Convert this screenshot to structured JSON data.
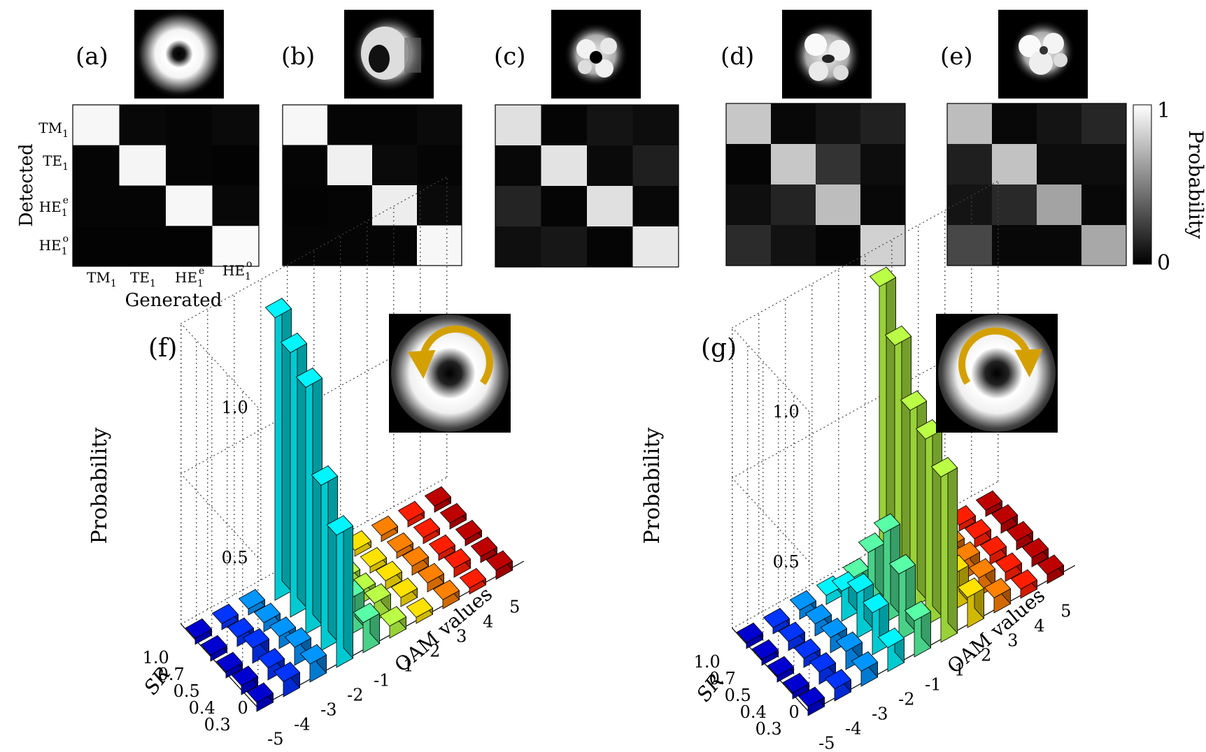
{
  "chart_data": [
    {
      "type": "heatmap",
      "panel_label": "(a)",
      "xlabel": "Generated",
      "ylabel": "Detected",
      "row_labels": [
        "TM",
        "TE",
        "HE",
        "HE"
      ],
      "row_subs": [
        "1",
        "1",
        "1",
        "1"
      ],
      "row_sups": [
        "",
        "",
        "e",
        "o"
      ],
      "col_labels": [
        "TM",
        "TE",
        "HE",
        "HE"
      ],
      "col_subs": [
        "1",
        "1",
        "1",
        "1"
      ],
      "col_sups": [
        "",
        "",
        "e",
        "o"
      ],
      "values": [
        [
          0.97,
          0.03,
          0.02,
          0.04
        ],
        [
          0.02,
          0.96,
          0.02,
          0.01
        ],
        [
          0.02,
          0.02,
          0.97,
          0.03
        ],
        [
          0.01,
          0.01,
          0.01,
          0.98
        ]
      ]
    },
    {
      "type": "heatmap",
      "panel_label": "(b)",
      "values": [
        [
          0.97,
          0.02,
          0.02,
          0.04
        ],
        [
          0.02,
          0.94,
          0.04,
          0.02
        ],
        [
          0.01,
          0.02,
          0.93,
          0.04
        ],
        [
          0.02,
          0.02,
          0.02,
          0.97
        ]
      ]
    },
    {
      "type": "heatmap",
      "panel_label": "(c)",
      "values": [
        [
          0.88,
          0.02,
          0.08,
          0.05
        ],
        [
          0.03,
          0.89,
          0.04,
          0.12
        ],
        [
          0.14,
          0.02,
          0.88,
          0.03
        ],
        [
          0.06,
          0.09,
          0.02,
          0.91
        ]
      ]
    },
    {
      "type": "heatmap",
      "panel_label": "(d)",
      "values": [
        [
          0.78,
          0.03,
          0.08,
          0.13
        ],
        [
          0.02,
          0.78,
          0.2,
          0.05
        ],
        [
          0.06,
          0.14,
          0.74,
          0.03
        ],
        [
          0.17,
          0.07,
          0.02,
          0.82
        ]
      ]
    },
    {
      "type": "heatmap",
      "panel_label": "(e)",
      "values": [
        [
          0.74,
          0.03,
          0.08,
          0.15
        ],
        [
          0.12,
          0.76,
          0.05,
          0.05
        ],
        [
          0.08,
          0.16,
          0.64,
          0.03
        ],
        [
          0.28,
          0.03,
          0.03,
          0.66
        ]
      ]
    },
    {
      "type": "colorbar",
      "label": "Probability",
      "min_label": "0",
      "max_label": "1",
      "range": [
        0,
        1
      ]
    },
    {
      "type": "bar3d",
      "panel_label": "(f)",
      "title": "",
      "zlabel": "Probability",
      "xlabel": "OAM values",
      "ylabel": "SR",
      "oam_values": [
        -5,
        -4,
        -3,
        -2,
        -1,
        1,
        2,
        3,
        4,
        5
      ],
      "oam_tick_labels": [
        "-5",
        "-4",
        "-3",
        "-2",
        "-1",
        "1",
        "2",
        "3",
        "4",
        "5"
      ],
      "sr_values": [
        0.3,
        0.4,
        0.5,
        0.7,
        1.0
      ],
      "sr_tick_labels": [
        "0.3",
        "0.4",
        "0.5",
        "0.7",
        "1.0"
      ],
      "z_ticks": [
        0,
        0.5,
        1.0
      ],
      "z_tick_labels": [
        "0",
        "0.5",
        "1.0"
      ],
      "zlim": [
        0,
        1.0
      ],
      "values": [
        [
          0.03,
          0.05,
          0.06,
          0.44,
          0.1,
          0.04,
          0.02,
          0.03,
          0.02,
          0.03
        ],
        [
          0.03,
          0.04,
          0.06,
          0.55,
          0.12,
          0.06,
          0.03,
          0.03,
          0.03,
          0.02
        ],
        [
          0.02,
          0.05,
          0.04,
          0.82,
          0.05,
          0.04,
          0.03,
          0.03,
          0.02,
          0.02
        ],
        [
          0.02,
          0.03,
          0.03,
          0.88,
          0.04,
          0.03,
          0.02,
          0.02,
          0.02,
          0.02
        ],
        [
          0.02,
          0.02,
          0.02,
          0.94,
          0.02,
          0.02,
          0.02,
          0.02,
          0.02,
          0.02
        ]
      ]
    },
    {
      "type": "bar3d",
      "panel_label": "(g)",
      "title": "",
      "zlabel": "Probability",
      "xlabel": "OAM values",
      "ylabel": "SR",
      "oam_values": [
        -5,
        -4,
        -3,
        -2,
        -1,
        1,
        2,
        3,
        4,
        5
      ],
      "oam_tick_labels": [
        "-5",
        "-4",
        "-3",
        "-2",
        "-1",
        "1",
        "2",
        "3",
        "4",
        "5"
      ],
      "sr_values": [
        0.3,
        0.4,
        0.5,
        0.7,
        1.0
      ],
      "sr_tick_labels": [
        "0.3",
        "0.4",
        "0.5",
        "0.7",
        "1.0"
      ],
      "z_ticks": [
        0,
        0.5,
        1.0
      ],
      "z_tick_labels": [
        "0",
        "0.5",
        "1.0"
      ],
      "zlim": [
        0,
        1.0
      ],
      "values": [
        [
          0.03,
          0.04,
          0.05,
          0.08,
          0.12,
          0.55,
          0.1,
          0.05,
          0.03,
          0.03
        ],
        [
          0.02,
          0.04,
          0.06,
          0.14,
          0.22,
          0.62,
          0.12,
          0.06,
          0.03,
          0.03
        ],
        [
          0.02,
          0.03,
          0.05,
          0.15,
          0.3,
          0.66,
          0.12,
          0.06,
          0.03,
          0.03
        ],
        [
          0.02,
          0.03,
          0.04,
          0.1,
          0.18,
          0.82,
          0.07,
          0.05,
          0.03,
          0.03
        ],
        [
          0.02,
          0.02,
          0.03,
          0.03,
          0.04,
          0.96,
          0.04,
          0.03,
          0.02,
          0.02
        ]
      ]
    }
  ],
  "palette": {
    "jet_blue_dark": "#00008f",
    "jet_cyan": "#00ffff",
    "jet_green": "#7fff7f",
    "jet_yellow": "#ffff00",
    "jet_red_dark": "#800000",
    "arrow_color": "#d4a000",
    "mode_image_bg": "#000000",
    "gridline": "#444444"
  },
  "icons": {
    "insets": "mode-intensity-image",
    "arrows": "circular-rotation-arrow-icon"
  }
}
